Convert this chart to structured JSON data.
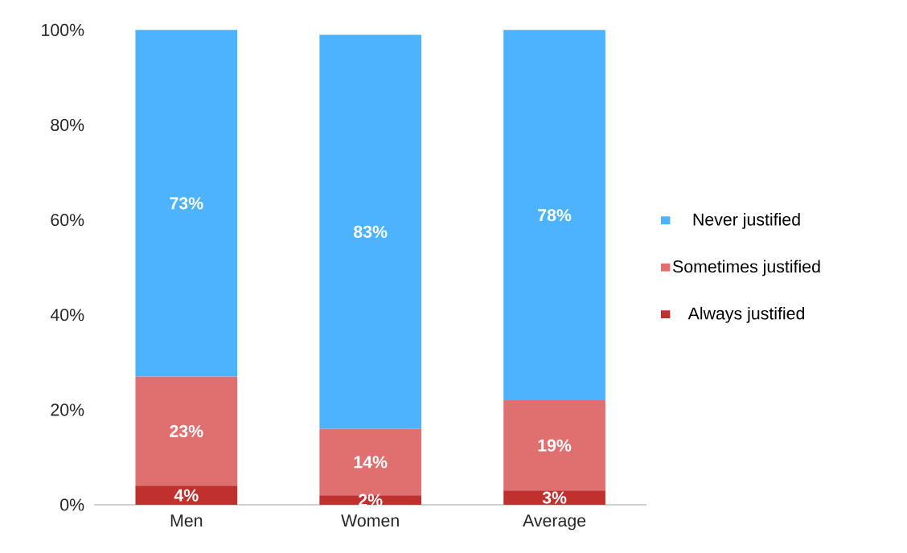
{
  "chart_data": {
    "type": "bar",
    "stacked": true,
    "categories": [
      "Men",
      "Women",
      "Average"
    ],
    "series": [
      {
        "name": "Always justified",
        "color": "#c0302f",
        "values": [
          4,
          2,
          3
        ],
        "value_labels": [
          "4%",
          "2%",
          "3%"
        ]
      },
      {
        "name": "Sometimes justified",
        "color": "#e07070",
        "values": [
          23,
          14,
          19
        ],
        "value_labels": [
          "23%",
          "14%",
          "19%"
        ]
      },
      {
        "name": "Never justified",
        "color": "#4db3ff",
        "values": [
          73,
          83,
          78
        ],
        "value_labels": [
          "73%",
          "83%",
          "78%"
        ]
      }
    ],
    "ylim": [
      0,
      100
    ],
    "yticks": [
      {
        "value": 0,
        "label": "0%"
      },
      {
        "value": 20,
        "label": "20%"
      },
      {
        "value": 40,
        "label": "40%"
      },
      {
        "value": 60,
        "label": "60%"
      },
      {
        "value": 80,
        "label": "80%"
      },
      {
        "value": 100,
        "label": "100%"
      }
    ],
    "legend": "right",
    "grid": false
  }
}
